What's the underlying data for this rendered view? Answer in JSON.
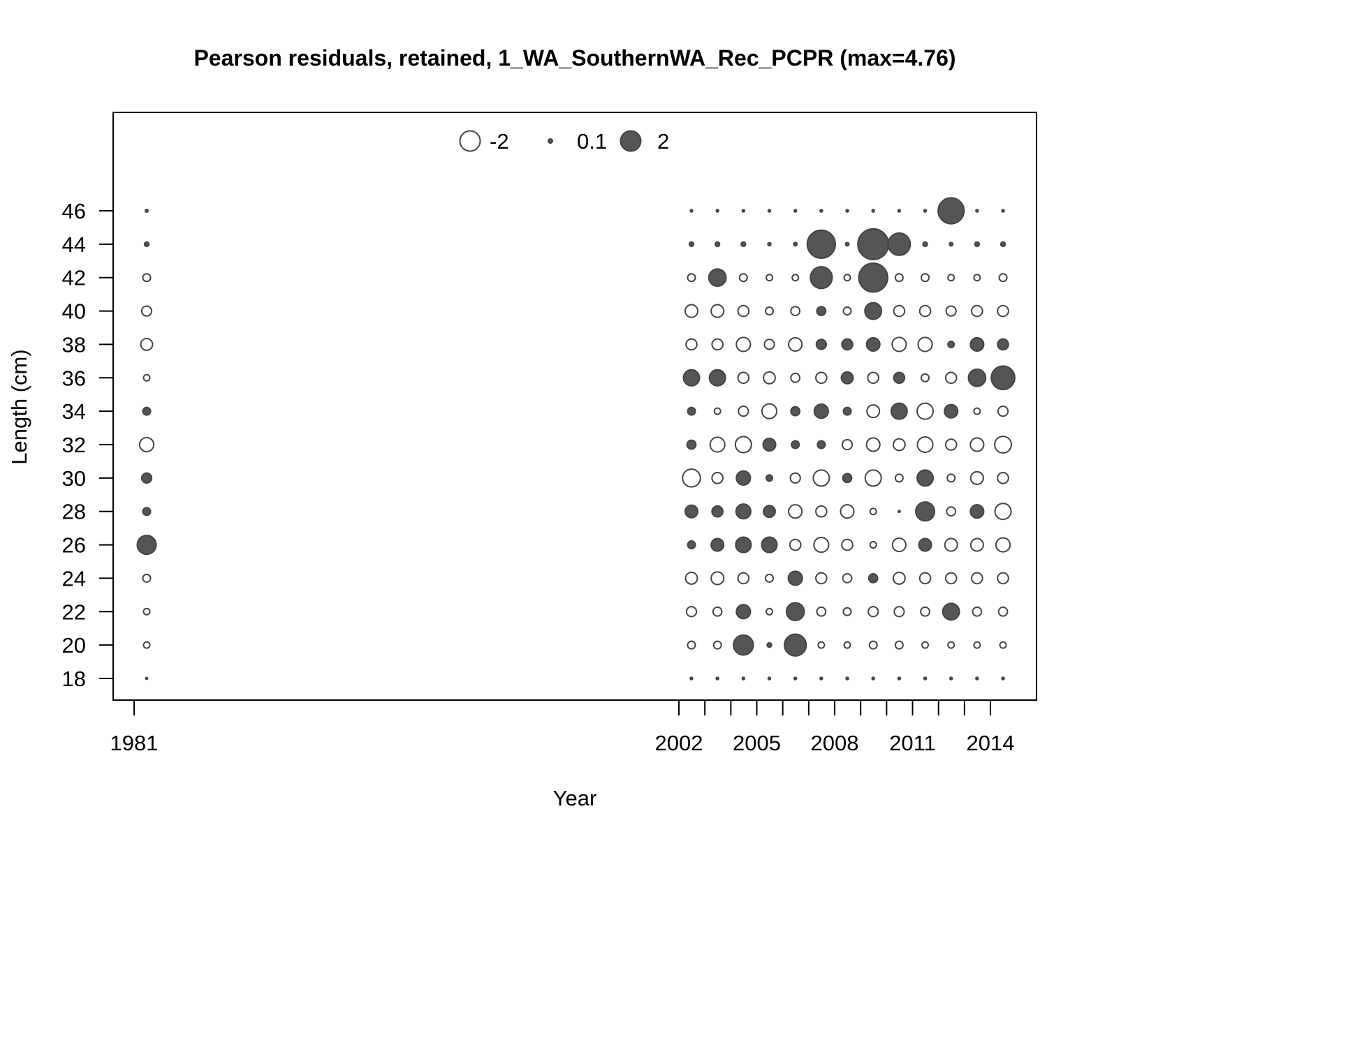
{
  "chart_data": {
    "type": "scatter",
    "subtype": "bubble",
    "title": "Pearson residuals, retained, 1_WA_SouthernWA_Rec_PCPR (max=4.76)",
    "xlabel": "Year",
    "ylabel": "Length (cm)",
    "x_tick_labels": [
      "1981",
      "2002",
      "2005",
      "2008",
      "2011",
      "2014"
    ],
    "y_tick_labels": [
      "18",
      "20",
      "22",
      "24",
      "26",
      "28",
      "30",
      "32",
      "34",
      "36",
      "38",
      "40",
      "42",
      "44",
      "46"
    ],
    "legend": {
      "placement": "top",
      "entries": [
        {
          "label": "-2",
          "value": -2
        },
        {
          "label": "0.1",
          "value": 0.1
        },
        {
          "label": "2",
          "value": 2
        }
      ]
    },
    "colors": {
      "positive": "#555555",
      "negative": "#ffffff",
      "stroke": "#444444"
    },
    "max_residual": 4.76,
    "lengths": [
      18,
      20,
      22,
      24,
      26,
      28,
      30,
      32,
      34,
      36,
      38,
      40,
      42,
      44,
      46
    ],
    "series": [
      {
        "year": 1981,
        "residuals": [
          0.02,
          -0.2,
          -0.2,
          -0.3,
          1.8,
          0.3,
          0.5,
          -1.0,
          0.3,
          -0.2,
          -0.7,
          -0.5,
          -0.3,
          0.1,
          0.04
        ]
      },
      {
        "year": 2002,
        "residuals": [
          0.03,
          -0.3,
          -0.5,
          -0.7,
          0.3,
          0.8,
          -1.6,
          0.4,
          0.3,
          1.3,
          -0.6,
          -0.8,
          -0.3,
          0.1,
          0.03
        ]
      },
      {
        "year": 2003,
        "residuals": [
          0.03,
          -0.3,
          -0.4,
          -0.8,
          0.8,
          0.6,
          -0.6,
          -1.1,
          -0.2,
          1.3,
          -0.6,
          -0.8,
          1.5,
          0.1,
          0.03
        ]
      },
      {
        "year": 2004,
        "residuals": [
          0.03,
          2.0,
          1.0,
          -0.6,
          1.2,
          1.1,
          1.0,
          -1.3,
          -0.5,
          -0.6,
          -1.0,
          -0.6,
          -0.3,
          0.1,
          0.03
        ]
      },
      {
        "year": 2005,
        "residuals": [
          0.03,
          0.1,
          -0.2,
          -0.3,
          1.2,
          0.7,
          0.2,
          0.8,
          -1.1,
          -0.7,
          -0.5,
          -0.3,
          -0.2,
          0.05,
          0.03
        ]
      },
      {
        "year": 2006,
        "residuals": [
          0.03,
          2.4,
          1.6,
          1.0,
          -0.6,
          -0.9,
          -0.5,
          0.3,
          0.4,
          -0.4,
          -0.9,
          -0.4,
          -0.2,
          0.06,
          0.03
        ]
      },
      {
        "year": 2007,
        "residuals": [
          0.03,
          -0.2,
          -0.4,
          -0.6,
          -1.1,
          -0.6,
          -1.3,
          0.3,
          1.0,
          -0.6,
          0.5,
          0.4,
          2.4,
          4.0,
          0.03
        ]
      },
      {
        "year": 2008,
        "residuals": [
          0.03,
          -0.2,
          -0.3,
          -0.4,
          -0.6,
          -0.9,
          0.4,
          -0.5,
          0.3,
          0.7,
          0.6,
          -0.3,
          -0.2,
          0.06,
          0.03
        ]
      },
      {
        "year": 2009,
        "residuals": [
          0.03,
          -0.3,
          -0.5,
          0.4,
          -0.2,
          -0.2,
          -1.3,
          -0.9,
          -0.8,
          -0.6,
          0.9,
          1.4,
          4.2,
          4.76,
          0.03
        ]
      },
      {
        "year": 2010,
        "residuals": [
          0.03,
          -0.3,
          -0.5,
          -0.7,
          -0.9,
          0.02,
          -0.3,
          -0.7,
          1.3,
          0.6,
          -1.0,
          -0.6,
          -0.3,
          2.5,
          0.03
        ]
      },
      {
        "year": 2011,
        "residuals": [
          0.03,
          -0.2,
          -0.4,
          -0.6,
          0.8,
          1.8,
          1.3,
          -1.2,
          -1.3,
          -0.3,
          -1.0,
          -0.6,
          -0.3,
          0.1,
          0.03
        ]
      },
      {
        "year": 2012,
        "residuals": [
          0.03,
          -0.2,
          1.4,
          -0.6,
          -0.8,
          -0.4,
          -0.3,
          -0.6,
          0.9,
          -0.6,
          0.2,
          -0.5,
          -0.2,
          0.06,
          3.4
        ]
      },
      {
        "year": 2013,
        "residuals": [
          0.03,
          -0.2,
          -0.4,
          -0.6,
          -0.8,
          0.9,
          -0.8,
          -0.9,
          -0.2,
          1.5,
          0.9,
          -0.6,
          -0.2,
          0.1,
          0.03
        ]
      },
      {
        "year": 2014,
        "residuals": [
          0.03,
          -0.2,
          -0.4,
          -0.6,
          -1.0,
          -1.3,
          -0.6,
          -1.4,
          -0.5,
          2.8,
          0.6,
          -0.6,
          -0.3,
          0.1,
          0.03
        ]
      }
    ]
  }
}
